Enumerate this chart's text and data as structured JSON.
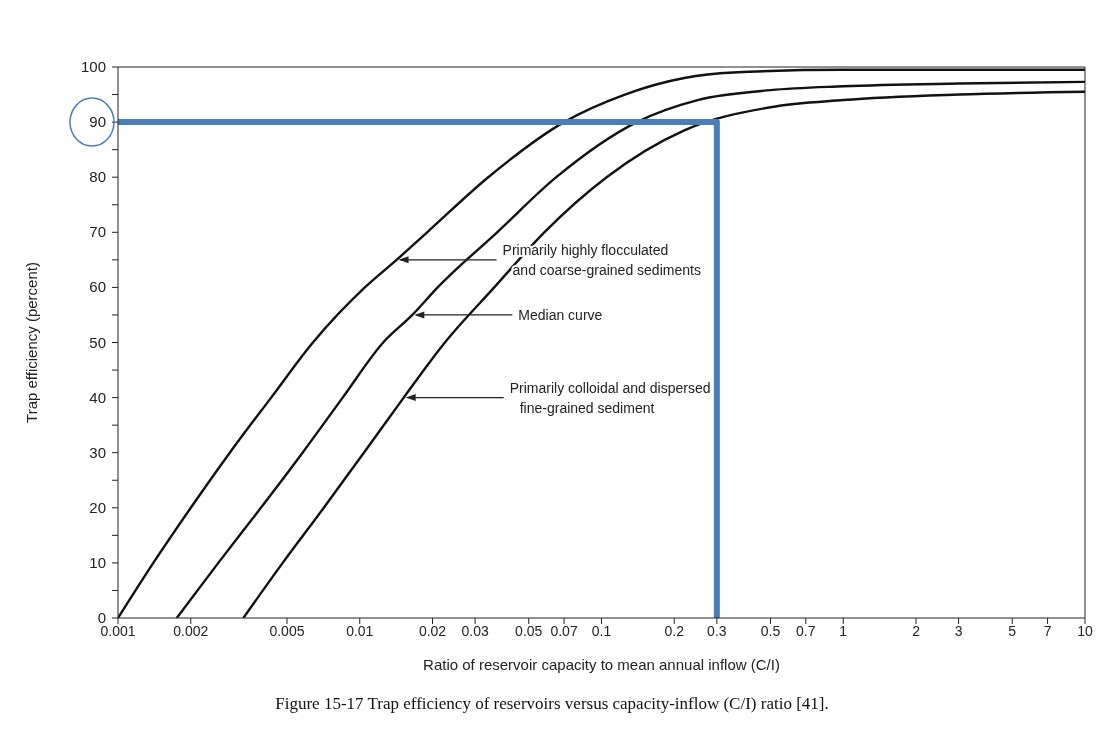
{
  "chart_data": {
    "type": "line",
    "xlabel": "Ratio of reservoir capacity to mean annual inflow (C/I)",
    "ylabel": "Trap efficiency (percent)",
    "log": "x",
    "xlim": [
      0.001,
      10
    ],
    "ylim": [
      0,
      100
    ],
    "xticks": [
      0.001,
      0.002,
      0.005,
      0.01,
      0.02,
      0.03,
      0.05,
      0.07,
      0.1,
      0.2,
      0.3,
      0.5,
      0.7,
      1,
      2,
      3,
      5,
      7,
      10
    ],
    "yticks": [
      0,
      {
        "value": 5,
        "label": null
      },
      10,
      {
        "value": 15,
        "label": null
      },
      20,
      {
        "value": 25,
        "label": null
      },
      30,
      {
        "value": 35,
        "label": null
      },
      40,
      {
        "value": 45,
        "label": null
      },
      50,
      {
        "value": 55,
        "label": null
      },
      60,
      {
        "value": 65,
        "label": null
      },
      70,
      {
        "value": 75,
        "label": null
      },
      80,
      {
        "value": 85,
        "label": null
      },
      90,
      {
        "value": 95,
        "label": null
      },
      100
    ],
    "series": [
      {
        "color": "#111111",
        "x": [
          0.001,
          0.0014,
          0.002,
          0.0029,
          0.0043,
          0.0064,
          0.0105,
          0.0142,
          0.019,
          0.034,
          0.07,
          0.125,
          0.22,
          0.35,
          1,
          10
        ],
        "values": [
          0,
          10,
          20,
          30,
          40,
          50,
          60,
          65,
          70,
          80,
          90,
          95,
          98,
          99,
          99.5,
          99.5
        ]
      },
      {
        "color": "#111111",
        "x": [
          0.00175,
          0.0026,
          0.0039,
          0.0058,
          0.0085,
          0.0125,
          0.0165,
          0.021,
          0.037,
          0.065,
          0.14,
          0.25,
          0.5,
          1,
          3,
          10
        ],
        "values": [
          0,
          10,
          20,
          30,
          40,
          50,
          55,
          60,
          70,
          80,
          90,
          94,
          95.8,
          96.5,
          97,
          97.3
        ]
      },
      {
        "color": "#111111",
        "x": [
          0.0033,
          0.0048,
          0.0071,
          0.0104,
          0.0152,
          0.0225,
          0.036,
          0.058,
          0.105,
          0.22,
          0.5,
          1,
          3,
          10
        ],
        "values": [
          0,
          10,
          20,
          30,
          40,
          50,
          60,
          70,
          80,
          88.5,
          92.7,
          94,
          95,
          95.5
        ]
      },
      {
        "color": "#4a7ebb",
        "x": [
          0.001,
          0.3,
          0.3
        ],
        "values": [
          90,
          90,
          0
        ]
      }
    ],
    "annotations": [
      {
        "text": "Primarily highly flocculated\nand coarse-grained sediments",
        "x": 0.0142,
        "y": 65
      },
      {
        "text": "Median curve",
        "x": 0.0165,
        "y": 55
      },
      {
        "text": "Primarily colloidal and dispersed\nfine-grained sediment",
        "x": 0.0152,
        "y": 40
      },
      "Figure 15-17    Trap efficiency of reservoirs versus capacity-inflow (C/I) ratio [41]."
    ]
  }
}
